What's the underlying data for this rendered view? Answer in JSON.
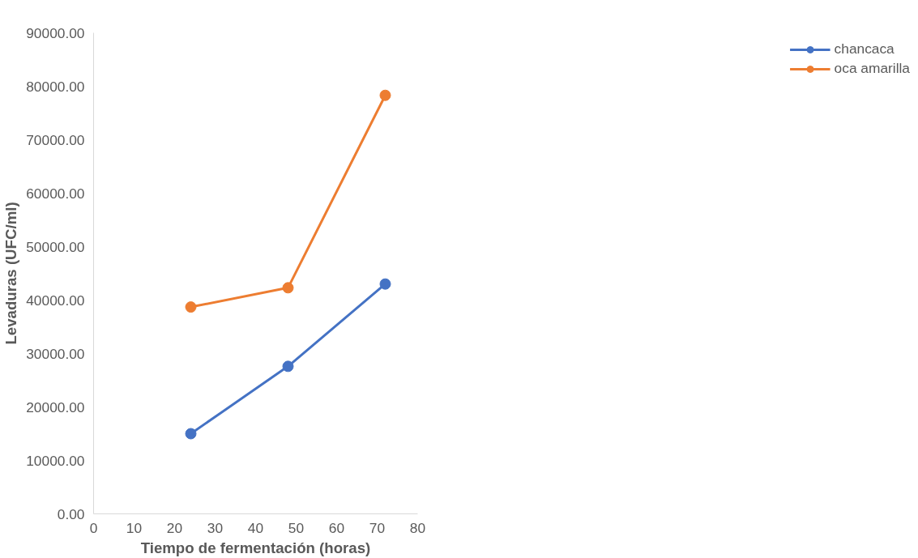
{
  "chart_data": {
    "type": "line",
    "xlabel": "Tiempo de fermentación (horas)",
    "ylabel": "Levaduras (UFC/ml)",
    "x": [
      24,
      48,
      72
    ],
    "series": [
      {
        "name": "chancaca",
        "color": "#4472c4",
        "values": [
          15000,
          27600,
          43000
        ]
      },
      {
        "name": "oca amarilla",
        "color": "#ed7d31",
        "values": [
          38700,
          42300,
          78300
        ]
      }
    ],
    "xlim": [
      0,
      80
    ],
    "xticks": [
      0,
      10,
      20,
      30,
      40,
      50,
      60,
      70,
      80
    ],
    "ylim": [
      0,
      90000
    ],
    "yticks": [
      {
        "value": 0,
        "label": "0.00"
      },
      {
        "value": 10000,
        "label": "10000.00"
      },
      {
        "value": 20000,
        "label": "20000.00"
      },
      {
        "value": 30000,
        "label": "30000.00"
      },
      {
        "value": 40000,
        "label": "40000.00"
      },
      {
        "value": 50000,
        "label": "50000.00"
      },
      {
        "value": 60000,
        "label": "60000.00"
      },
      {
        "value": 70000,
        "label": "70000.00"
      },
      {
        "value": 80000,
        "label": "80000.00"
      },
      {
        "value": 90000,
        "label": "90000.00"
      }
    ],
    "grid": false,
    "legend": "right",
    "marker": "circle",
    "line_style": "solid"
  }
}
